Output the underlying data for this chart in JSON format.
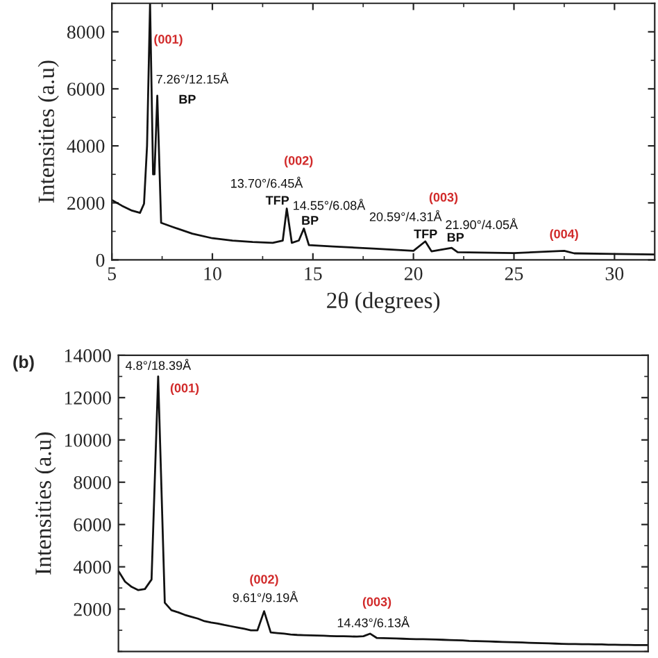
{
  "chart_data": [
    {
      "type": "line",
      "xlabel": "2θ (degrees)",
      "ylabel": "Intensities (a.u)",
      "xlim": [
        5,
        32
      ],
      "xticks": [
        5,
        10,
        15,
        20,
        25,
        30
      ],
      "ylim": [
        0,
        9000
      ],
      "yticks": [
        0,
        2000,
        4000,
        6000,
        8000
      ],
      "series": [
        {
          "color": "#111111",
          "x": [
            5,
            5.5,
            6.0,
            6.4,
            6.6,
            6.75,
            6.9,
            7.05,
            7.12,
            7.26,
            7.45,
            8,
            9,
            10,
            11,
            12,
            13,
            13.5,
            13.7,
            13.95,
            14.3,
            14.55,
            14.8,
            16,
            18,
            20,
            20.59,
            20.9,
            21.9,
            22.2,
            25,
            27.5,
            28,
            30,
            32
          ],
          "values": [
            2100,
            1900,
            1730,
            1650,
            1970,
            4000,
            9000,
            3000,
            3000,
            5760,
            1300,
            1160,
            920,
            760,
            680,
            630,
            600,
            680,
            1800,
            600,
            680,
            1100,
            520,
            470,
            400,
            320,
            650,
            300,
            420,
            270,
            240,
            320,
            230,
            210,
            190
          ]
        }
      ],
      "annotations": [
        "(001)",
        "7.26°/12.15Å",
        "BP",
        "(002)",
        "13.70°/6.45Å",
        "TFP",
        "14.55°/6.08Å",
        "BP",
        "(003)",
        "20.59°/4.31Å",
        "TFP",
        "21.90°/4.05Å",
        "BP",
        "(004)"
      ]
    },
    {
      "type": "line",
      "ylabel": "Intensities (a.u)",
      "ylim": [
        0,
        14000
      ],
      "yticks": [
        2000,
        4000,
        6000,
        8000,
        10000,
        12000,
        14000
      ],
      "tick_labels": "y",
      "categories": [
        null,
        null,
        null,
        null,
        null,
        null,
        null,
        null,
        null,
        null,
        null,
        null,
        null,
        null,
        null,
        null,
        null,
        null,
        null,
        null,
        null,
        null,
        null,
        null,
        null,
        null,
        null,
        null,
        null,
        null,
        null,
        null,
        null,
        null,
        null,
        null,
        null,
        null,
        null,
        null,
        null,
        null,
        null,
        null,
        null,
        null,
        null,
        null,
        null,
        null,
        null,
        null,
        null,
        null,
        null,
        null,
        null,
        null,
        null,
        null,
        null,
        null,
        null,
        null,
        null,
        null,
        null,
        null,
        null,
        null,
        null,
        null,
        null,
        null,
        null,
        null,
        null,
        null,
        null,
        null,
        null
      ],
      "series": [
        {
          "color": "#111111",
          "values": [
            3800,
            3300,
            3050,
            2900,
            2950,
            3400,
            13000,
            2300,
            1950,
            1850,
            1730,
            1640,
            1550,
            1430,
            1370,
            1320,
            1250,
            1190,
            1130,
            1070,
            1000,
            1000,
            1900,
            900,
            870,
            840,
            800,
            780,
            770,
            760,
            750,
            740,
            730,
            720,
            720,
            710,
            700,
            720,
            840,
            640,
            630,
            620,
            610,
            600,
            590,
            580,
            580,
            570,
            560,
            550,
            540,
            530,
            520,
            500,
            490,
            480,
            470,
            460,
            450,
            440,
            430,
            420,
            410,
            400,
            390,
            380,
            370,
            360,
            350,
            350,
            340,
            340,
            330,
            330,
            320,
            320,
            310,
            310,
            300,
            300,
            300
          ]
        }
      ],
      "annotations": [
        "(b)",
        "4.8°/18.39Å",
        "(001)",
        "(002)",
        "9.61°/9.19Å",
        "(003)",
        "14.43°/6.13Å"
      ]
    }
  ]
}
